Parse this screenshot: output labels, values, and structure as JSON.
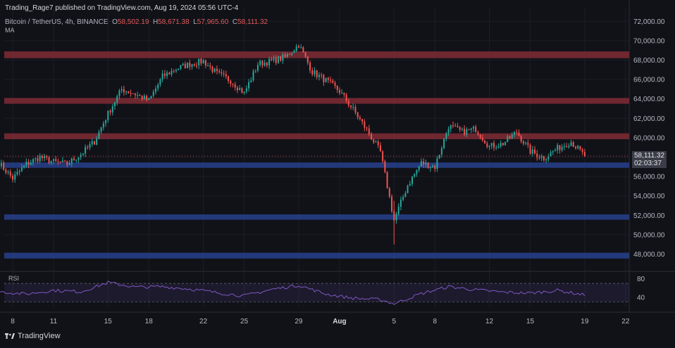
{
  "header": {
    "publish_line": "Trading_Rage7 published on TradingView.com, Aug 19, 2024 05:56 UTC-4",
    "symbol": "Bitcoin / TetherUS, 4h, BINANCE",
    "ohlc": {
      "O": "58,502.19",
      "H": "58,671.38",
      "L": "57,965.60",
      "C": "58,111.32"
    },
    "ma_label": "MA"
  },
  "footer": {
    "brand": "TradingView"
  },
  "price_tag": {
    "price": "58,111.32",
    "countdown": "02:03:37"
  },
  "colors": {
    "background": "#111218",
    "up": "#26a69a",
    "down": "#ef5350",
    "resistance_zone": "#7a2a33",
    "support_zone": "#263e86",
    "rsi_line": "#7e57c2",
    "grid": "#1c1e26"
  },
  "chart_data": [
    {
      "type": "candlestick",
      "title": "Bitcoin / TetherUS, 4h, BINANCE",
      "x_tick_labels": [
        "8",
        "11",
        "15",
        "18",
        "22",
        "25",
        "29",
        "Aug",
        "5",
        "8",
        "12",
        "15",
        "19",
        "22"
      ],
      "y_tick_labels": [
        "48,000.00",
        "50,000.00",
        "52,000.00",
        "54,000.00",
        "56,000.00",
        "58,000.00",
        "60,000.00",
        "62,000.00",
        "64,000.00",
        "66,000.00",
        "68,000.00",
        "70,000.00",
        "72,000.00"
      ],
      "ylim": [
        46300,
        72600
      ],
      "grid": true,
      "anchors": [
        [
          "2024-07-07",
          57400
        ],
        [
          "2024-07-08",
          55800
        ],
        [
          "2024-07-09",
          57300
        ],
        [
          "2024-07-10",
          58000
        ],
        [
          "2024-07-11",
          57500
        ],
        [
          "2024-07-12",
          57300
        ],
        [
          "2024-07-13",
          58300
        ],
        [
          "2024-07-14",
          59600
        ],
        [
          "2024-07-15",
          62500
        ],
        [
          "2024-07-16",
          65000
        ],
        [
          "2024-07-17",
          64500
        ],
        [
          "2024-07-18",
          63800
        ],
        [
          "2024-07-19",
          66300
        ],
        [
          "2024-07-20",
          67100
        ],
        [
          "2024-07-21",
          67600
        ],
        [
          "2024-07-22",
          67900
        ],
        [
          "2024-07-23",
          66600
        ],
        [
          "2024-07-24",
          65900
        ],
        [
          "2024-07-25",
          64600
        ],
        [
          "2024-07-26",
          67600
        ],
        [
          "2024-07-27",
          67900
        ],
        [
          "2024-07-28",
          68300
        ],
        [
          "2024-07-29",
          69600
        ],
        [
          "2024-07-30",
          66800
        ],
        [
          "2024-07-31",
          65900
        ],
        [
          "2024-08-01",
          64800
        ],
        [
          "2024-08-02",
          62900
        ],
        [
          "2024-08-03",
          60800
        ],
        [
          "2024-08-04",
          58500
        ],
        [
          "2024-08-05",
          51500
        ],
        [
          "2024-08-06",
          55100
        ],
        [
          "2024-08-07",
          57400
        ],
        [
          "2024-08-08",
          57000
        ],
        [
          "2024-08-09",
          61200
        ],
        [
          "2024-08-10",
          60600
        ],
        [
          "2024-08-11",
          60900
        ],
        [
          "2024-08-12",
          59100
        ],
        [
          "2024-08-13",
          59400
        ],
        [
          "2024-08-14",
          60600
        ],
        [
          "2024-08-15",
          58600
        ],
        [
          "2024-08-16",
          57900
        ],
        [
          "2024-08-17",
          58900
        ],
        [
          "2024-08-18",
          59600
        ],
        [
          "2024-08-19",
          58111
        ]
      ],
      "zones": [
        {
          "kind": "resistance",
          "low": 68200,
          "high": 68900
        },
        {
          "kind": "resistance",
          "low": 63500,
          "high": 64100
        },
        {
          "kind": "resistance",
          "low": 59850,
          "high": 60450
        },
        {
          "kind": "support",
          "low": 56900,
          "high": 57450
        },
        {
          "kind": "support",
          "low": 51550,
          "high": 52100
        },
        {
          "kind": "support",
          "low": 47550,
          "high": 48150
        }
      ],
      "last_price": 58111.32
    },
    {
      "type": "line",
      "title": "RSI",
      "y_tick_labels": [
        "80",
        "40"
      ],
      "ylim": [
        20,
        90
      ],
      "band": [
        30,
        70
      ],
      "anchors": [
        [
          "2024-07-07",
          52
        ],
        [
          "2024-07-09",
          47
        ],
        [
          "2024-07-11",
          55
        ],
        [
          "2024-07-13",
          52
        ],
        [
          "2024-07-15",
          72
        ],
        [
          "2024-07-17",
          62
        ],
        [
          "2024-07-19",
          63
        ],
        [
          "2024-07-21",
          58
        ],
        [
          "2024-07-23",
          50
        ],
        [
          "2024-07-25",
          43
        ],
        [
          "2024-07-27",
          57
        ],
        [
          "2024-07-29",
          66
        ],
        [
          "2024-07-31",
          47
        ],
        [
          "2024-08-02",
          38
        ],
        [
          "2024-08-04",
          35
        ],
        [
          "2024-08-05",
          26
        ],
        [
          "2024-08-07",
          48
        ],
        [
          "2024-08-09",
          63
        ],
        [
          "2024-08-11",
          56
        ],
        [
          "2024-08-13",
          51
        ],
        [
          "2024-08-15",
          49
        ],
        [
          "2024-08-17",
          55
        ],
        [
          "2024-08-19",
          45
        ]
      ]
    }
  ]
}
